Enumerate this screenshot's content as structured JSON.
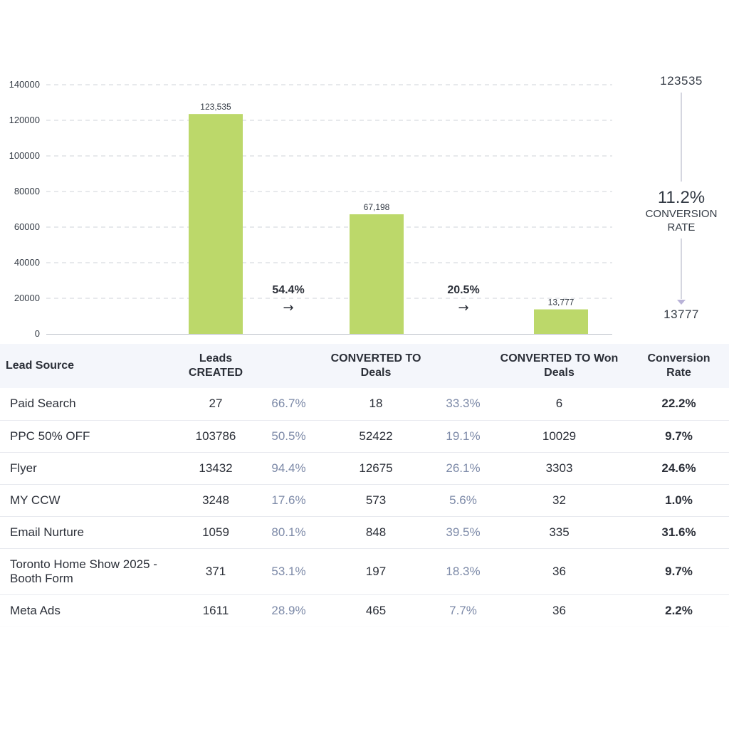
{
  "chart_data": {
    "type": "bar",
    "categories": [
      "Leads CREATED",
      "CONVERTED TO Deals",
      "CONVERTED TO Won Deals"
    ],
    "values": [
      123535,
      67198,
      13777
    ],
    "value_labels": [
      "123,535",
      "67,198",
      "13,777"
    ],
    "y_ticks": [
      "0",
      "20000",
      "40000",
      "60000",
      "80000",
      "100000",
      "120000",
      "140000"
    ],
    "ylim": [
      0,
      140000
    ],
    "grid": true,
    "bar_color": "#bcd86a",
    "steps": [
      {
        "percent": "54.4%",
        "arrow": "→"
      },
      {
        "percent": "20.5%",
        "arrow": "→"
      }
    ],
    "summary": {
      "top": "123535",
      "rate": "11.2%",
      "caption_line1": "CONVERSION",
      "caption_line2": "RATE",
      "bottom": "13777"
    }
  },
  "table": {
    "headers": {
      "lead_source": "Lead Source",
      "leads_line1": "Leads",
      "leads_line2": "CREATED",
      "deals_line1": "CONVERTED TO",
      "deals_line2": "Deals",
      "won_line1": "CONVERTED TO Won",
      "won_line2": "Deals",
      "rate_line1": "Conversion",
      "rate_line2": "Rate"
    },
    "rows": [
      {
        "source": "Paid Search",
        "leads": "27",
        "pct1": "66.7%",
        "deals": "18",
        "pct2": "33.3%",
        "won": "6",
        "rate": "22.2%"
      },
      {
        "source": "PPC 50% OFF",
        "leads": "103786",
        "pct1": "50.5%",
        "deals": "52422",
        "pct2": "19.1%",
        "won": "10029",
        "rate": "9.7%"
      },
      {
        "source": "Flyer",
        "leads": "13432",
        "pct1": "94.4%",
        "deals": "12675",
        "pct2": "26.1%",
        "won": "3303",
        "rate": "24.6%"
      },
      {
        "source": "MY CCW",
        "leads": "3248",
        "pct1": "17.6%",
        "deals": "573",
        "pct2": "5.6%",
        "won": "32",
        "rate": "1.0%"
      },
      {
        "source": "Email Nurture",
        "leads": "1059",
        "pct1": "80.1%",
        "deals": "848",
        "pct2": "39.5%",
        "won": "335",
        "rate": "31.6%"
      },
      {
        "source": "Toronto Home Show 2025 - Booth Form",
        "leads": "371",
        "pct1": "53.1%",
        "deals": "197",
        "pct2": "18.3%",
        "won": "36",
        "rate": "9.7%"
      },
      {
        "source": "Meta Ads",
        "leads": "1611",
        "pct1": "28.9%",
        "deals": "465",
        "pct2": "7.7%",
        "won": "36",
        "rate": "2.2%"
      }
    ]
  }
}
